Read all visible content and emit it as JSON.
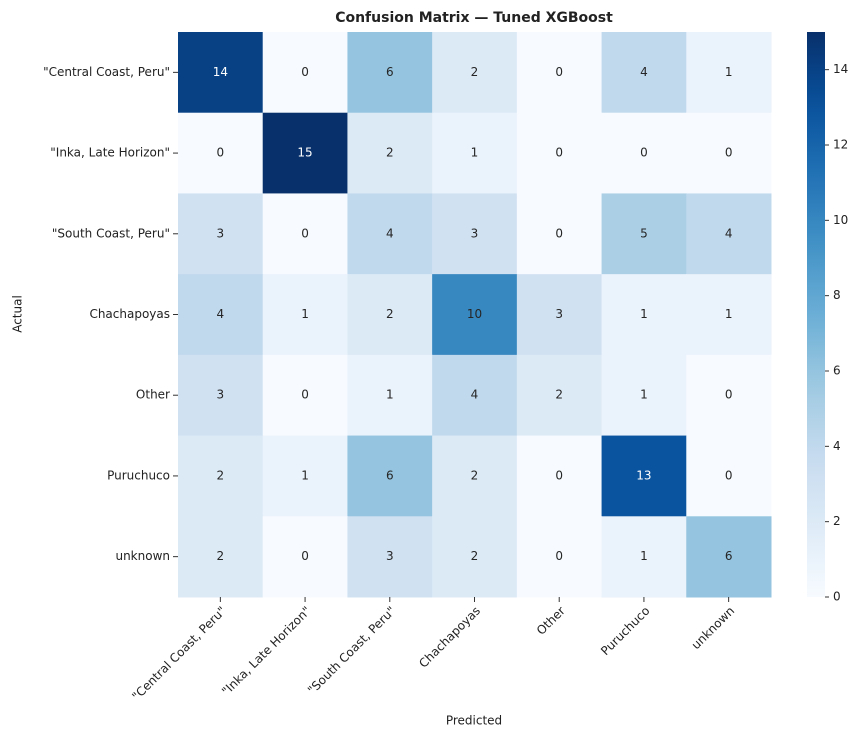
{
  "chart_data": {
    "type": "heatmap",
    "title": "Confusion Matrix — Tuned XGBoost",
    "xlabel": "Predicted",
    "ylabel": "Actual",
    "x_categories": [
      "\"Central Coast, Peru\"",
      "\"Inka, Late Horizon\"",
      "\"South Coast, Peru\"",
      "Chachapoyas",
      "Other",
      "Puruchuco",
      "unknown"
    ],
    "y_categories": [
      "\"Central Coast, Peru\"",
      "\"Inka, Late Horizon\"",
      "\"South Coast, Peru\"",
      "Chachapoyas",
      "Other",
      "Puruchuco",
      "unknown"
    ],
    "values": [
      [
        14,
        0,
        6,
        2,
        0,
        4,
        1
      ],
      [
        0,
        15,
        2,
        1,
        0,
        0,
        0
      ],
      [
        3,
        0,
        4,
        3,
        0,
        5,
        4
      ],
      [
        4,
        1,
        2,
        10,
        3,
        1,
        1
      ],
      [
        3,
        0,
        1,
        4,
        2,
        1,
        0
      ],
      [
        2,
        1,
        6,
        2,
        0,
        13,
        0
      ],
      [
        2,
        0,
        3,
        2,
        0,
        1,
        6
      ]
    ],
    "colormap": "Blues",
    "zlim": [
      0,
      15
    ],
    "zticks": [
      0,
      2,
      4,
      6,
      8,
      10,
      12,
      14
    ]
  }
}
